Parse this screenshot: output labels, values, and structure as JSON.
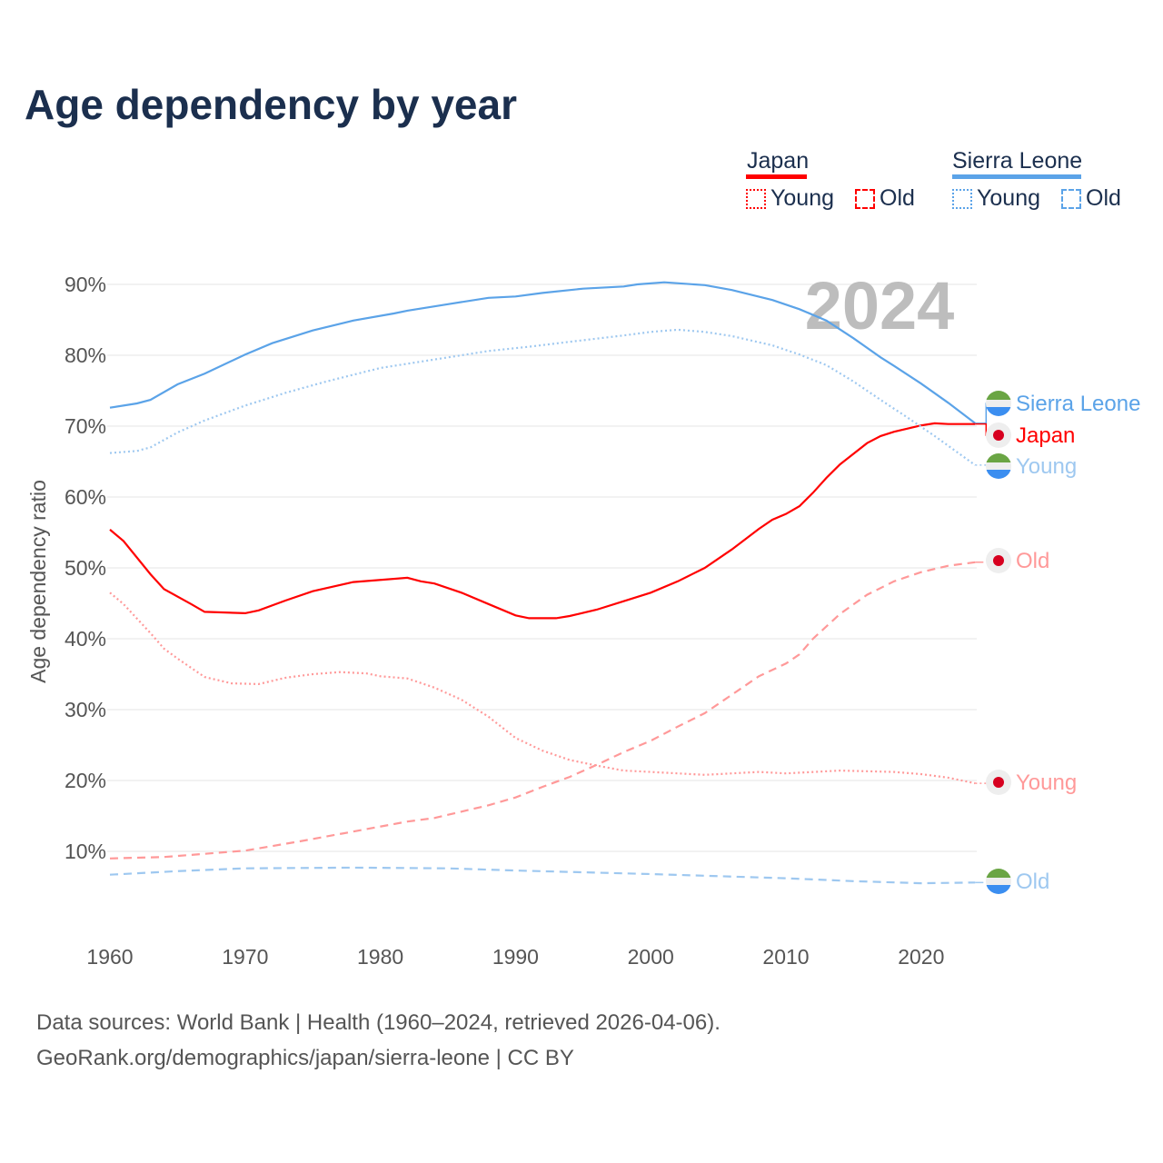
{
  "title": "Age dependency by year",
  "legend": {
    "groups": [
      {
        "name": "Japan",
        "color": "#ff0000",
        "items": [
          "Young",
          "Old"
        ]
      },
      {
        "name": "Sierra Leone",
        "color": "#5ba3e8",
        "items": [
          "Young",
          "Old"
        ]
      }
    ]
  },
  "year_label": "2024",
  "source": {
    "line1": "Data sources: World Bank | Health (1960–2024, retrieved 2026-04-06).",
    "line2": "GeoRank.org/demographics/japan/sierra-leone | CC BY"
  },
  "chart_data": {
    "type": "line",
    "title": "Age dependency by year",
    "xlabel": "",
    "ylabel": "Age dependency ratio",
    "xlim": [
      1960,
      2024
    ],
    "ylim": [
      0,
      92
    ],
    "x_ticks": [
      "1960",
      "1970",
      "1980",
      "1990",
      "2000",
      "2010",
      "2020"
    ],
    "y_ticks": [
      "10%",
      "20%",
      "30%",
      "40%",
      "50%",
      "60%",
      "70%",
      "80%",
      "90%"
    ],
    "grid": true,
    "series": [
      {
        "name": "Sierra Leone",
        "label": "Sierra Leone",
        "country": "Sierra Leone",
        "style": "solid",
        "color": "#5ba3e8",
        "points": [
          [
            1960,
            72.6
          ],
          [
            1962,
            73.2
          ],
          [
            1963,
            73.7
          ],
          [
            1965,
            75.9
          ],
          [
            1967,
            77.4
          ],
          [
            1970,
            80.1
          ],
          [
            1972,
            81.7
          ],
          [
            1975,
            83.5
          ],
          [
            1978,
            84.9
          ],
          [
            1981,
            85.9
          ],
          [
            1982,
            86.3
          ],
          [
            1985,
            87.2
          ],
          [
            1988,
            88.1
          ],
          [
            1990,
            88.3
          ],
          [
            1992,
            88.8
          ],
          [
            1995,
            89.4
          ],
          [
            1998,
            89.7
          ],
          [
            1999,
            90.0
          ],
          [
            2001,
            90.3
          ],
          [
            2004,
            89.9
          ],
          [
            2006,
            89.2
          ],
          [
            2009,
            87.8
          ],
          [
            2011,
            86.5
          ],
          [
            2013,
            84.9
          ],
          [
            2015,
            82.4
          ],
          [
            2017,
            79.7
          ],
          [
            2018,
            78.5
          ],
          [
            2020,
            76.0
          ],
          [
            2022,
            73.3
          ],
          [
            2024,
            70.4
          ]
        ]
      },
      {
        "name": "Japan",
        "label": "Japan",
        "country": "Japan",
        "style": "solid",
        "color": "#ff0000",
        "points": [
          [
            1960,
            55.4
          ],
          [
            1961,
            53.8
          ],
          [
            1963,
            49.1
          ],
          [
            1964,
            47.0
          ],
          [
            1966,
            44.9
          ],
          [
            1967,
            43.8
          ],
          [
            1970,
            43.6
          ],
          [
            1971,
            44.0
          ],
          [
            1973,
            45.4
          ],
          [
            1975,
            46.7
          ],
          [
            1978,
            48.0
          ],
          [
            1982,
            48.6
          ],
          [
            1983,
            48.1
          ],
          [
            1984,
            47.8
          ],
          [
            1986,
            46.5
          ],
          [
            1988,
            44.9
          ],
          [
            1990,
            43.3
          ],
          [
            1991,
            42.9
          ],
          [
            1993,
            42.9
          ],
          [
            1994,
            43.2
          ],
          [
            1996,
            44.1
          ],
          [
            1998,
            45.3
          ],
          [
            2000,
            46.5
          ],
          [
            2002,
            48.1
          ],
          [
            2004,
            50.0
          ],
          [
            2006,
            52.6
          ],
          [
            2008,
            55.5
          ],
          [
            2009,
            56.8
          ],
          [
            2010,
            57.6
          ],
          [
            2011,
            58.7
          ],
          [
            2012,
            60.6
          ],
          [
            2013,
            62.7
          ],
          [
            2014,
            64.6
          ],
          [
            2016,
            67.6
          ],
          [
            2017,
            68.6
          ],
          [
            2018,
            69.2
          ],
          [
            2020,
            70.1
          ],
          [
            2021,
            70.4
          ],
          [
            2022,
            70.3
          ],
          [
            2024,
            70.3
          ]
        ]
      },
      {
        "name": "Sierra Leone Young",
        "label": "Young",
        "country": "Sierra Leone",
        "style": "dotted",
        "color": "#9ec8f0",
        "points": [
          [
            1960,
            66.2
          ],
          [
            1962,
            66.5
          ],
          [
            1963,
            67.0
          ],
          [
            1965,
            69.1
          ],
          [
            1967,
            70.8
          ],
          [
            1970,
            72.9
          ],
          [
            1973,
            74.7
          ],
          [
            1976,
            76.3
          ],
          [
            1980,
            78.2
          ],
          [
            1983,
            79.1
          ],
          [
            1986,
            80.0
          ],
          [
            1988,
            80.6
          ],
          [
            1991,
            81.2
          ],
          [
            1994,
            81.9
          ],
          [
            1998,
            82.8
          ],
          [
            2000,
            83.3
          ],
          [
            2002,
            83.6
          ],
          [
            2004,
            83.3
          ],
          [
            2006,
            82.7
          ],
          [
            2009,
            81.4
          ],
          [
            2011,
            80.1
          ],
          [
            2013,
            78.6
          ],
          [
            2015,
            76.3
          ],
          [
            2017,
            73.7
          ],
          [
            2019,
            71.2
          ],
          [
            2021,
            68.6
          ],
          [
            2024,
            64.5
          ]
        ]
      },
      {
        "name": "Japan Old",
        "label": "Old",
        "country": "Japan",
        "style": "dashed",
        "color": "#ff9999",
        "points": [
          [
            1960,
            9.0
          ],
          [
            1964,
            9.2
          ],
          [
            1966,
            9.5
          ],
          [
            1970,
            10.1
          ],
          [
            1974,
            11.4
          ],
          [
            1978,
            12.8
          ],
          [
            1982,
            14.2
          ],
          [
            1984,
            14.7
          ],
          [
            1986,
            15.6
          ],
          [
            1988,
            16.5
          ],
          [
            1990,
            17.6
          ],
          [
            1992,
            19.1
          ],
          [
            1994,
            20.5
          ],
          [
            1996,
            22.2
          ],
          [
            1998,
            24.0
          ],
          [
            2000,
            25.6
          ],
          [
            2002,
            27.6
          ],
          [
            2004,
            29.5
          ],
          [
            2006,
            32.1
          ],
          [
            2008,
            34.7
          ],
          [
            2010,
            36.5
          ],
          [
            2011,
            37.8
          ],
          [
            2012,
            40.0
          ],
          [
            2014,
            43.5
          ],
          [
            2016,
            46.2
          ],
          [
            2018,
            48.1
          ],
          [
            2020,
            49.4
          ],
          [
            2022,
            50.3
          ],
          [
            2024,
            50.8
          ]
        ]
      },
      {
        "name": "Japan Young",
        "label": "Young",
        "country": "Japan",
        "style": "dotted",
        "color": "#ff9999",
        "points": [
          [
            1960,
            46.5
          ],
          [
            1961,
            44.9
          ],
          [
            1963,
            40.8
          ],
          [
            1964,
            38.6
          ],
          [
            1965,
            37.2
          ],
          [
            1967,
            34.6
          ],
          [
            1969,
            33.7
          ],
          [
            1971,
            33.6
          ],
          [
            1973,
            34.5
          ],
          [
            1975,
            35.0
          ],
          [
            1977,
            35.3
          ],
          [
            1979,
            35.1
          ],
          [
            1980,
            34.7
          ],
          [
            1982,
            34.4
          ],
          [
            1984,
            33.1
          ],
          [
            1986,
            31.4
          ],
          [
            1988,
            29.0
          ],
          [
            1990,
            26.0
          ],
          [
            1992,
            24.2
          ],
          [
            1994,
            22.9
          ],
          [
            1996,
            22.1
          ],
          [
            1998,
            21.4
          ],
          [
            2000,
            21.2
          ],
          [
            2004,
            20.8
          ],
          [
            2008,
            21.2
          ],
          [
            2010,
            21.0
          ],
          [
            2014,
            21.4
          ],
          [
            2018,
            21.2
          ],
          [
            2020,
            20.9
          ],
          [
            2022,
            20.4
          ],
          [
            2024,
            19.6
          ]
        ]
      },
      {
        "name": "Sierra Leone Old",
        "label": "Old",
        "country": "Sierra Leone",
        "style": "dashed",
        "color": "#9ec8f0",
        "points": [
          [
            1960,
            6.7
          ],
          [
            1965,
            7.2
          ],
          [
            1970,
            7.6
          ],
          [
            1978,
            7.7
          ],
          [
            1985,
            7.6
          ],
          [
            1990,
            7.3
          ],
          [
            2000,
            6.8
          ],
          [
            2010,
            6.2
          ],
          [
            2015,
            5.8
          ],
          [
            2020,
            5.5
          ],
          [
            2024,
            5.6
          ]
        ]
      }
    ]
  }
}
